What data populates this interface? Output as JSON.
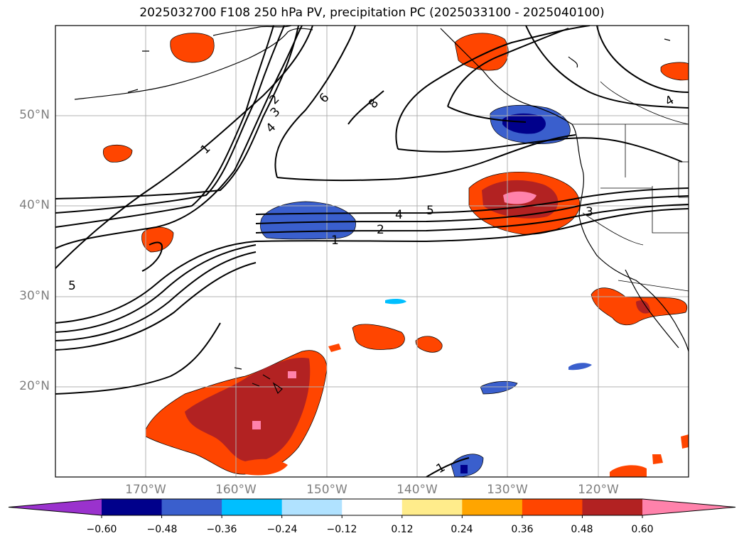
{
  "title": "2025032700 F108 250 hPa PV, precipitation PC (2025033100 - 2025040100)",
  "lat_labels": [
    "50°N",
    "40°N",
    "30°N",
    "20°N"
  ],
  "lon_labels": [
    "170°W",
    "160°W",
    "150°W",
    "140°W",
    "130°W",
    "120°W"
  ],
  "colorbar": {
    "ticks": [
      "−0.60",
      "−0.48",
      "−0.36",
      "−0.24",
      "−0.12",
      "0.12",
      "0.24",
      "0.36",
      "0.48",
      "0.60"
    ],
    "colors": [
      "#9a32cd",
      "#00008b",
      "#3a5fcd",
      "#00bfff",
      "#b0e2ff",
      "#ffffff",
      "#ffec8b",
      "#ffa500",
      "#ff4500",
      "#b22222",
      "#ff82ab"
    ]
  },
  "contour_labels": [
    "1",
    "2",
    "3",
    "4",
    "5",
    "6",
    "8",
    "1",
    "2",
    "4",
    "5",
    "3",
    "4",
    "5",
    "1"
  ]
}
